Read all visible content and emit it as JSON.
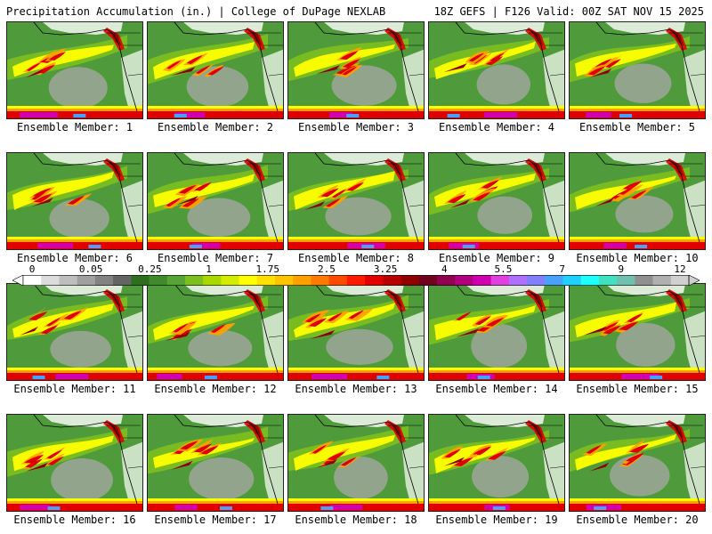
{
  "header": {
    "title": "Precipitation Accumulation (in.) | College of DuPage NEXLAB",
    "run_info": "18Z GEFS | F126 Valid: 00Z SAT NOV 15 2025"
  },
  "panels": [
    {
      "label": "Ensemble Member: 1"
    },
    {
      "label": "Ensemble Member: 2"
    },
    {
      "label": "Ensemble Member: 3"
    },
    {
      "label": "Ensemble Member: 4"
    },
    {
      "label": "Ensemble Member: 5"
    },
    {
      "label": "Ensemble Member: 6"
    },
    {
      "label": "Ensemble Member: 7"
    },
    {
      "label": "Ensemble Member: 8"
    },
    {
      "label": "Ensemble Member: 9"
    },
    {
      "label": "Ensemble Member: 10"
    },
    {
      "label": "Ensemble Member: 11"
    },
    {
      "label": "Ensemble Member: 12"
    },
    {
      "label": "Ensemble Member: 13"
    },
    {
      "label": "Ensemble Member: 14"
    },
    {
      "label": "Ensemble Member: 15"
    },
    {
      "label": "Ensemble Member: 16"
    },
    {
      "label": "Ensemble Member: 17"
    },
    {
      "label": "Ensemble Member: 18"
    },
    {
      "label": "Ensemble Member: 19"
    },
    {
      "label": "Ensemble Member: 20"
    }
  ],
  "colorbar": {
    "tick_labels": [
      "0",
      "0.05",
      "0.25",
      "1",
      "1.75",
      "2.5",
      "3.25",
      "4",
      "5.5",
      "7",
      "9",
      "12"
    ],
    "colors": [
      "#ffffff",
      "#dcdcdc",
      "#bebebe",
      "#a0a0a0",
      "#828282",
      "#646464",
      "#2e6e1e",
      "#3f8a2a",
      "#54a535",
      "#7cc020",
      "#a8d800",
      "#d4ec00",
      "#ffff00",
      "#ffe000",
      "#ffc400",
      "#ffa000",
      "#ff7a00",
      "#ff4a00",
      "#ff1a00",
      "#e00000",
      "#b80000",
      "#900000",
      "#700020",
      "#900050",
      "#b00080",
      "#d000b0",
      "#e040e0",
      "#b070ff",
      "#8080ff",
      "#4aa0ff",
      "#20d0ff",
      "#20ffff",
      "#40e0c0",
      "#70c0b0",
      "#909090",
      "#b0b0b0",
      "#d0d0d0"
    ]
  },
  "map_colors": {
    "ocean_dry": "#a8a8a8",
    "green": "#4f9a3a",
    "light_green": "#7cc020",
    "yellow": "#ffff00",
    "orange": "#ffa000",
    "red": "#e00000",
    "dark_red": "#900000",
    "magenta": "#d000b0",
    "blue": "#4aa0ff",
    "land_dry": "#ffffff",
    "border": "#000000"
  }
}
